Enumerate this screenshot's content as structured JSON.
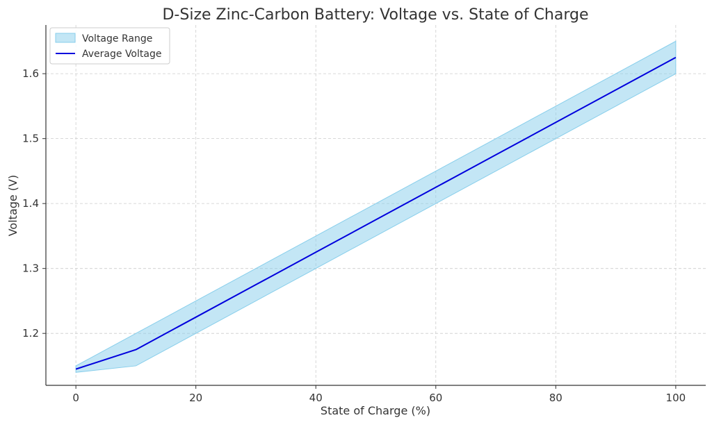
{
  "chart_data": {
    "type": "line",
    "title": "D-Size Zinc-Carbon Battery: Voltage vs. State of Charge",
    "xlabel": "State of Charge (%)",
    "ylabel": "Voltage (V)",
    "xlim": [
      -5,
      105
    ],
    "ylim": [
      1.12,
      1.675
    ],
    "x_ticks": [
      0,
      20,
      40,
      60,
      80,
      100
    ],
    "y_ticks": [
      1.2,
      1.3,
      1.4,
      1.5,
      1.6
    ],
    "x_tick_labels": [
      "0",
      "20",
      "40",
      "60",
      "80",
      "100"
    ],
    "y_tick_labels": [
      "1.2",
      "1.3",
      "1.4",
      "1.5",
      "1.6"
    ],
    "grid": true,
    "legend_position": "top-left",
    "x": [
      0,
      10,
      20,
      30,
      40,
      50,
      60,
      70,
      80,
      90,
      100
    ],
    "series": [
      {
        "name": "Voltage Range",
        "kind": "band",
        "lower": [
          1.14,
          1.15,
          1.2,
          1.25,
          1.3,
          1.35,
          1.4,
          1.45,
          1.5,
          1.55,
          1.6
        ],
        "upper": [
          1.15,
          1.2,
          1.25,
          1.3,
          1.35,
          1.4,
          1.45,
          1.5,
          1.55,
          1.6,
          1.65
        ],
        "color": "#87ceeb"
      },
      {
        "name": "Average Voltage",
        "kind": "line",
        "values": [
          1.145,
          1.175,
          1.225,
          1.275,
          1.325,
          1.375,
          1.425,
          1.475,
          1.525,
          1.575,
          1.625
        ],
        "color": "#0000dd"
      }
    ]
  }
}
